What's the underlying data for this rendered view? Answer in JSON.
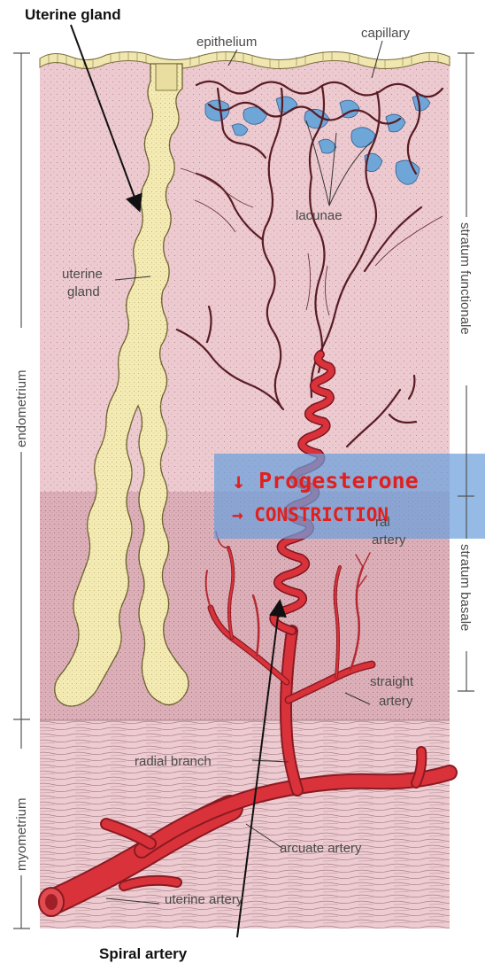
{
  "labels": {
    "uterine_gland_title": "Uterine gland",
    "epithelium": "epithelium",
    "capillary": "capillary",
    "lacunae": "lacunae",
    "uterine_gland": [
      "uterine",
      "gland"
    ],
    "spiral_artery_partial": [
      "ral",
      "artery"
    ],
    "straight_artery": [
      "straight",
      "artery"
    ],
    "radial_branch": "radial branch",
    "arcuate_artery": "arcuate artery",
    "uterine_artery": "uterine artery",
    "spiral_artery_title": "Spiral artery"
  },
  "side_labels": {
    "endometrium": "endometrium",
    "myometrium": "myometrium",
    "stratum_functionale": "stratum functionale",
    "stratum_basale": "stratum basale"
  },
  "overlay": {
    "line1": "↓ Progesterone",
    "line2": "→ CONSTRICTION"
  },
  "colors": {
    "functionalis": "#eccad0",
    "basalis": "#ddb0b9",
    "myometrium": "#edcbd1",
    "gland": "#f4ebb4",
    "artery": "#d9323a",
    "vessel_dark": "#5a1c24",
    "lacunae": "#6fa6d8",
    "overlay_band": "#6b9fdb",
    "overlay_text": "#e0201c"
  }
}
